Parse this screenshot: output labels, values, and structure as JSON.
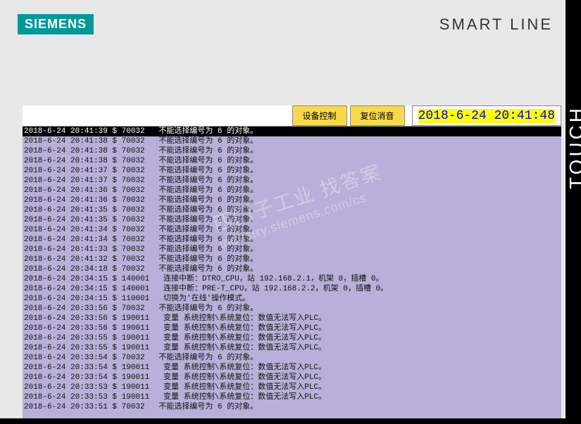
{
  "header": {
    "logo": "SIEMENS",
    "product": "SMART LINE",
    "side_label": "TOUCH"
  },
  "toolbar": {
    "btn_device": "设备控制",
    "btn_reset": "复位消音",
    "clock": "2018-6-24 20:41:48"
  },
  "watermark": {
    "line1": "西门子工业  找答案",
    "line2": "industry.siemens.com/cs"
  },
  "colors": {
    "log_bg": "#b8b0d8",
    "btn_bg": "#f9d94a",
    "logo_bg": "#009999",
    "selected_bg": "#000000",
    "selected_fg": "#ffffff",
    "clock_fg": "#0000ee",
    "clock_hl": "#ffff00"
  },
  "log": [
    {
      "ts": "2018-6-24 20:41:39",
      "sep": "$",
      "code": "70032",
      "msg": "不能选择编号为 6 的对象。",
      "sel": true
    },
    {
      "ts": "2018-6-24 20:41:38",
      "sep": "$",
      "code": "70032",
      "msg": "不能选择编号为 6 的对象。"
    },
    {
      "ts": "2018-6-24 20:41:38",
      "sep": "$",
      "code": "70032",
      "msg": "不能选择编号为 6 的对象。"
    },
    {
      "ts": "2018-6-24 20:41:38",
      "sep": "$",
      "code": "70032",
      "msg": "不能选择编号为 6 的对象。"
    },
    {
      "ts": "2018-6-24 20:41:37",
      "sep": "$",
      "code": "70032",
      "msg": "不能选择编号为 6 的对象。"
    },
    {
      "ts": "2018-6-24 20:41:37",
      "sep": "$",
      "code": "70032",
      "msg": "不能选择编号为 6 的对象。"
    },
    {
      "ts": "2018-6-24 20:41:36",
      "sep": "$",
      "code": "70032",
      "msg": "不能选择编号为 6 的对象。"
    },
    {
      "ts": "2018-6-24 20:41:36",
      "sep": "$",
      "code": "70032",
      "msg": "不能选择编号为 6 的对象。"
    },
    {
      "ts": "2018-6-24 20:41:35",
      "sep": "$",
      "code": "70032",
      "msg": "不能选择编号为 6 的对象。"
    },
    {
      "ts": "2018-6-24 20:41:35",
      "sep": "$",
      "code": "70032",
      "msg": "不能选择编号为 6 的对象。"
    },
    {
      "ts": "2018-6-24 20:41:34",
      "sep": "$",
      "code": "70032",
      "msg": "不能选择编号为 6 的对象。"
    },
    {
      "ts": "2018-6-24 20:41:34",
      "sep": "$",
      "code": "70032",
      "msg": "不能选择编号为 6 的对象。"
    },
    {
      "ts": "2018-6-24 20:41:33",
      "sep": "$",
      "code": "70032",
      "msg": "不能选择编号为 6 的对象。"
    },
    {
      "ts": "2018-6-24 20:41:32",
      "sep": "$",
      "code": "70032",
      "msg": "不能选择编号为 6 的对象。"
    },
    {
      "ts": "2018-6-24 20:34:18",
      "sep": "$",
      "code": "70032",
      "msg": "不能选择编号为 6 的对象。"
    },
    {
      "ts": "2018-6-24 20:34:15",
      "sep": "$",
      "code": "140001",
      "msg": " 连接中断：DTRO_CPU，站 192.168.2.1，机架 0，插槽 0。"
    },
    {
      "ts": "2018-6-24 20:34:15",
      "sep": "$",
      "code": "140001",
      "msg": " 连接中断：PRE-T_CPU，站 192.168.2.2，机架 0，插槽 0。"
    },
    {
      "ts": "2018-6-24 20:34:15",
      "sep": "$",
      "code": "110001",
      "msg": " 切换为'在线'操作模式。"
    },
    {
      "ts": "2018-6-24 20:33:56",
      "sep": "$",
      "code": "70032",
      "msg": "不能选择编号为 6 的对象。"
    },
    {
      "ts": "2018-6-24 20:33:56",
      "sep": "$",
      "code": "190011",
      "msg": " 变量 系统控制\\系统复位：数值无法写入PLC。"
    },
    {
      "ts": "2018-6-24 20:33:56",
      "sep": "$",
      "code": "190011",
      "msg": " 变量 系统控制\\系统复位：数值无法写入PLC。"
    },
    {
      "ts": "2018-6-24 20:33:55",
      "sep": "$",
      "code": "190011",
      "msg": " 变量 系统控制\\系统复位：数值无法写入PLC。"
    },
    {
      "ts": "2018-6-24 20:33:55",
      "sep": "$",
      "code": "190011",
      "msg": " 变量 系统控制\\系统复位：数值无法写入PLC。"
    },
    {
      "ts": "2018-6-24 20:33:54",
      "sep": "$",
      "code": "70032",
      "msg": "不能选择编号为 6 的对象。"
    },
    {
      "ts": "2018-6-24 20:33:54",
      "sep": "$",
      "code": "190011",
      "msg": " 变量 系统控制\\系统复位：数值无法写入PLC。"
    },
    {
      "ts": "2018-6-24 20:33:54",
      "sep": "$",
      "code": "190011",
      "msg": " 变量 系统控制\\系统复位：数值无法写入PLC。"
    },
    {
      "ts": "2018-6-24 20:33:53",
      "sep": "$",
      "code": "190011",
      "msg": " 变量 系统控制\\系统复位：数值无法写入PLC。"
    },
    {
      "ts": "2018-6-24 20:33:53",
      "sep": "$",
      "code": "190011",
      "msg": " 变量 系统控制\\系统复位：数值无法写入PLC。"
    },
    {
      "ts": "2018-6-24 20:33:51",
      "sep": "$",
      "code": "70032",
      "msg": "不能选择编号为 6 的对象。"
    }
  ]
}
